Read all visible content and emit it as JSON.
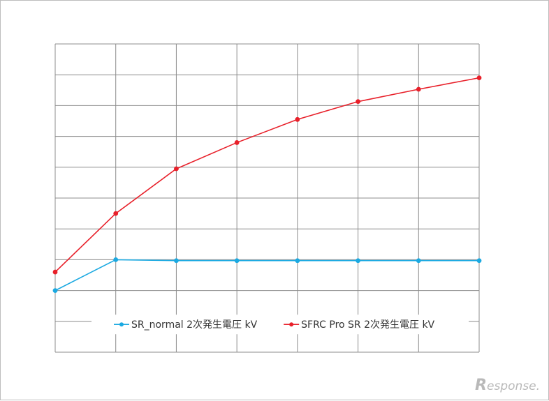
{
  "chart_data": {
    "type": "line",
    "x": [
      0,
      1,
      2,
      3,
      4,
      5,
      6,
      7
    ],
    "ylim": [
      0,
      10
    ],
    "grid": true,
    "legend_placement": "bottom-center",
    "series": [
      {
        "name": "SR_normal 2次発生電圧 kV",
        "color": "#1ba9e1",
        "values": [
          2.0,
          3.0,
          2.97,
          2.97,
          2.97,
          2.97,
          2.97,
          2.97
        ]
      },
      {
        "name": "SFRC Pro SR 2次発生電圧 kV",
        "color": "#e8202a",
        "values": [
          2.6,
          4.5,
          5.95,
          6.8,
          7.55,
          8.13,
          8.53,
          8.9
        ]
      }
    ]
  },
  "watermark": {
    "first": "R",
    "rest": "esponse."
  }
}
